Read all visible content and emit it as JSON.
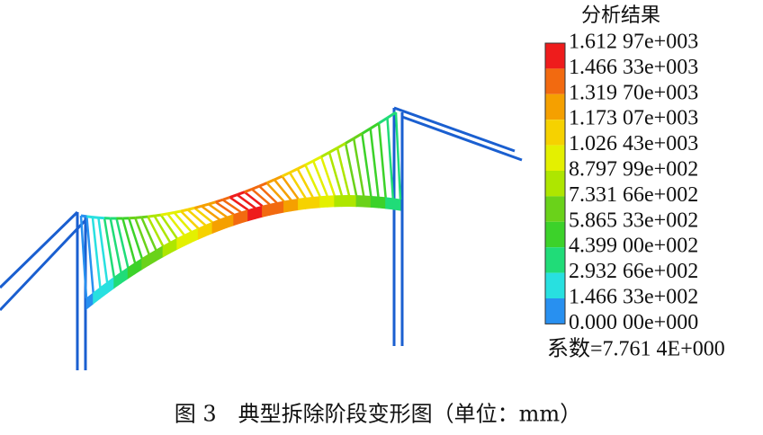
{
  "figure": {
    "legend_title": "分析结果",
    "legend_labels": [
      "1.612 97e+003",
      "1.466 33e+003",
      "1.319 70e+003",
      "1.173 07e+003",
      "1.026 43e+003",
      "8.797 99e+002",
      "7.331 66e+002",
      "5.865 33e+002",
      "4.399 00e+002",
      "2.932 66e+002",
      "1.466 33e+002",
      "0.000 00e+000"
    ],
    "legend_colors": [
      "#ee1c1c",
      "#f26a10",
      "#f5a000",
      "#f6d200",
      "#e4f000",
      "#aee600",
      "#6ad21a",
      "#3cd22a",
      "#20dc78",
      "#28e0e0",
      "#2890f0"
    ],
    "scale_factor": "系数=7.761 4E+000",
    "caption": "图 3　典型拆除阶段变形图（单位：mm）"
  }
}
